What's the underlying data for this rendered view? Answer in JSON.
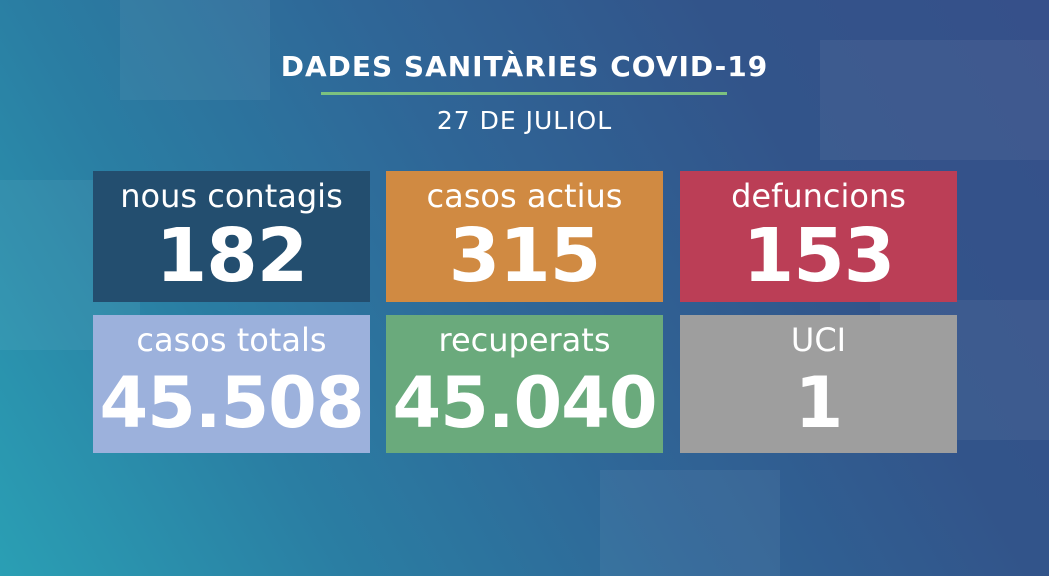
{
  "header": {
    "title": "DADES SANITÀRIES COVID-19",
    "date": "27 DE JULIOL"
  },
  "stats": [
    {
      "label": "nous contagis",
      "value": "182",
      "color": "#234e6f"
    },
    {
      "label": "casos actius",
      "value": "315",
      "color": "#d08a42"
    },
    {
      "label": "defuncions",
      "value": "153",
      "color": "#bb3e56"
    },
    {
      "label": "casos totals",
      "value": "45.508",
      "color": "#9cb1dc"
    },
    {
      "label": "recuperats",
      "value": "45.040",
      "color": "#6aaa7c"
    },
    {
      "label": "UCI",
      "value": "1",
      "color": "#9e9e9e"
    }
  ],
  "colors": {
    "title_rule": "#7cc17f"
  }
}
